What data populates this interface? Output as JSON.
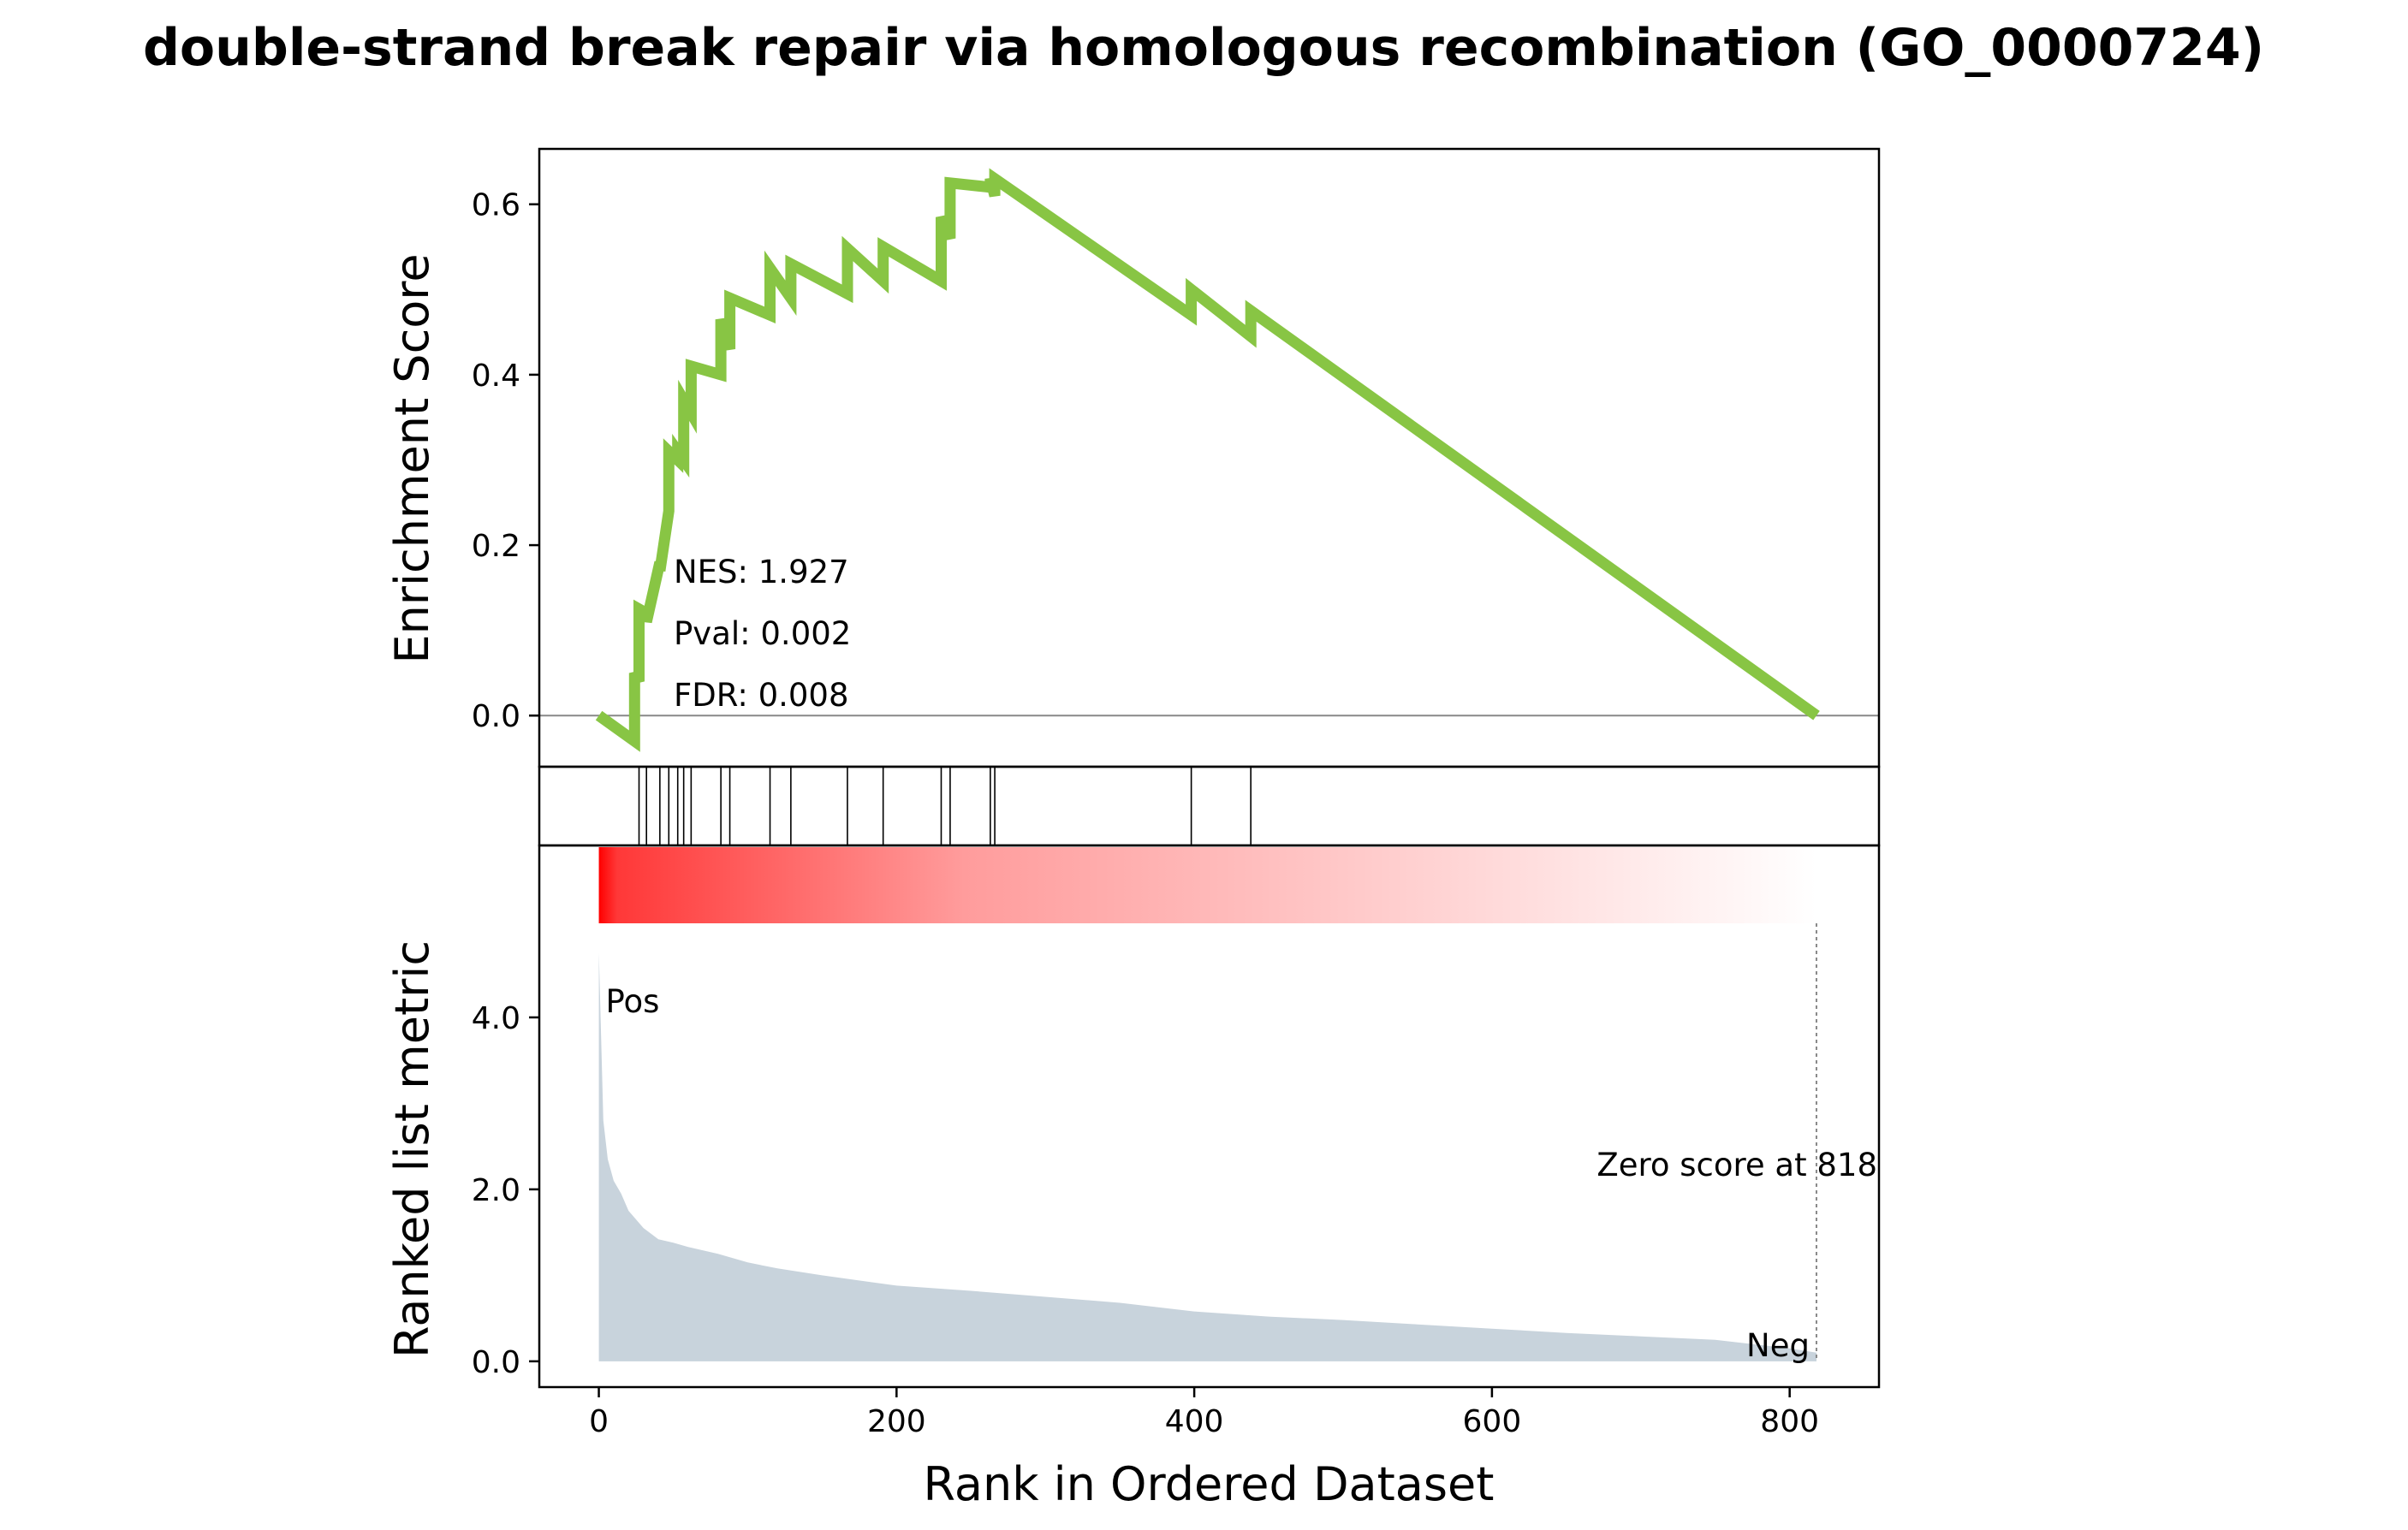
{
  "chart_data": {
    "type": "line",
    "title": "double-strand break repair via homologous recombination (GO_0000724)",
    "colors": {
      "es_line": "#88c544",
      "metric_fill": "#c8d3dc",
      "pos_label": "#ff0000",
      "neg_label": "#0000ff",
      "zero_line": "#888888",
      "gradient_start": "#ff0000",
      "gradient_end": "#ffffff"
    },
    "enrichment_plot": {
      "ylabel": "Enrichment Score",
      "ylim": [
        -0.06,
        0.665
      ],
      "yticks": [
        0.0,
        0.2,
        0.4,
        0.6
      ],
      "ytick_labels": [
        "0.0",
        "0.2",
        "0.4",
        "0.6"
      ],
      "x": [
        0,
        24,
        24,
        27,
        27,
        32,
        32,
        41,
        41,
        47,
        47,
        53,
        53,
        57,
        57,
        62,
        62,
        82,
        82,
        88,
        88,
        115,
        115,
        129,
        129,
        167,
        167,
        191,
        191,
        230,
        230,
        236,
        236,
        263,
        263,
        266,
        266,
        398,
        398,
        438,
        438,
        818
      ],
      "y": [
        0.0,
        -0.03,
        0.05,
        0.04,
        0.125,
        0.12,
        0.11,
        0.18,
        0.17,
        0.24,
        0.31,
        0.3,
        0.31,
        0.3,
        0.37,
        0.355,
        0.41,
        0.4,
        0.465,
        0.43,
        0.49,
        0.47,
        0.525,
        0.49,
        0.53,
        0.495,
        0.548,
        0.51,
        0.55,
        0.51,
        0.585,
        0.56,
        0.625,
        0.62,
        0.63,
        0.61,
        0.63,
        0.47,
        0.5,
        0.445,
        0.475,
        0.0
      ],
      "annotations": [
        "NES: 1.927",
        "Pval: 0.002",
        "FDR: 0.008"
      ]
    },
    "hits": [
      27,
      32,
      41,
      47,
      53,
      57,
      62,
      82,
      88,
      115,
      129,
      167,
      191,
      230,
      236,
      263,
      266,
      398,
      438
    ],
    "metric_plot": {
      "xlabel": "Rank in Ordered Dataset",
      "ylabel": "Ranked list metric",
      "xlim": [
        -40,
        860
      ],
      "xticks": [
        0,
        200,
        400,
        600,
        800
      ],
      "xtick_labels": [
        "0",
        "200",
        "400",
        "600",
        "800"
      ],
      "ylim": [
        -0.3,
        6.0
      ],
      "yticks": [
        0.0,
        2.0,
        4.0
      ],
      "ytick_labels": [
        "0.0",
        "2.0",
        "4.0"
      ],
      "x": [
        0,
        3,
        6,
        10,
        15,
        20,
        30,
        40,
        50,
        60,
        80,
        100,
        120,
        150,
        200,
        250,
        300,
        350,
        400,
        450,
        500,
        550,
        600,
        650,
        700,
        750,
        800,
        818
      ],
      "y": [
        4.75,
        2.8,
        2.35,
        2.1,
        1.95,
        1.75,
        1.55,
        1.42,
        1.38,
        1.33,
        1.25,
        1.15,
        1.08,
        1.0,
        0.88,
        0.82,
        0.75,
        0.68,
        0.58,
        0.52,
        0.48,
        0.43,
        0.38,
        0.33,
        0.29,
        0.25,
        0.15,
        0.1
      ],
      "pos_label": "Pos",
      "neg_label": "Neg",
      "zero_score_text": "Zero score at 818",
      "zero_score_rank": 818
    }
  }
}
